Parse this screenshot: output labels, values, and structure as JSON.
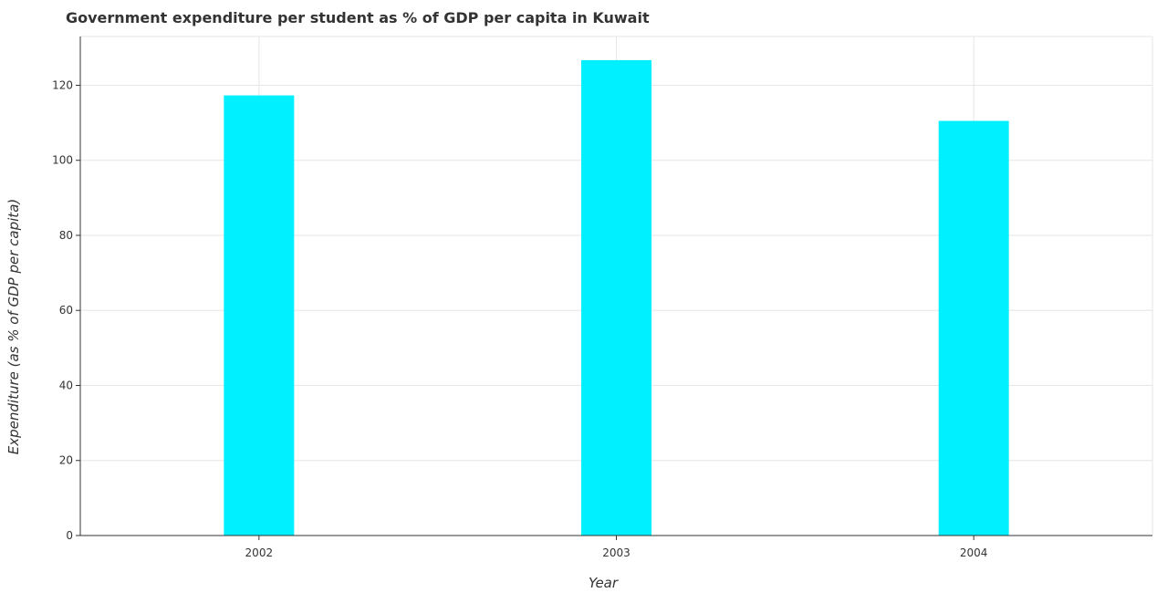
{
  "chart_data": {
    "type": "bar",
    "title": "Government expenditure per student as % of GDP per capita in Kuwait",
    "xlabel": "Year",
    "ylabel": "Expenditure (as % of GDP per capita)",
    "categories": [
      "2002",
      "2003",
      "2004"
    ],
    "values": [
      117.3,
      126.7,
      110.5
    ],
    "ylim": [
      0,
      133
    ],
    "yticks": [
      0,
      20,
      40,
      60,
      80,
      100,
      120
    ],
    "grid": true,
    "bar_color": "#00f0ff"
  }
}
